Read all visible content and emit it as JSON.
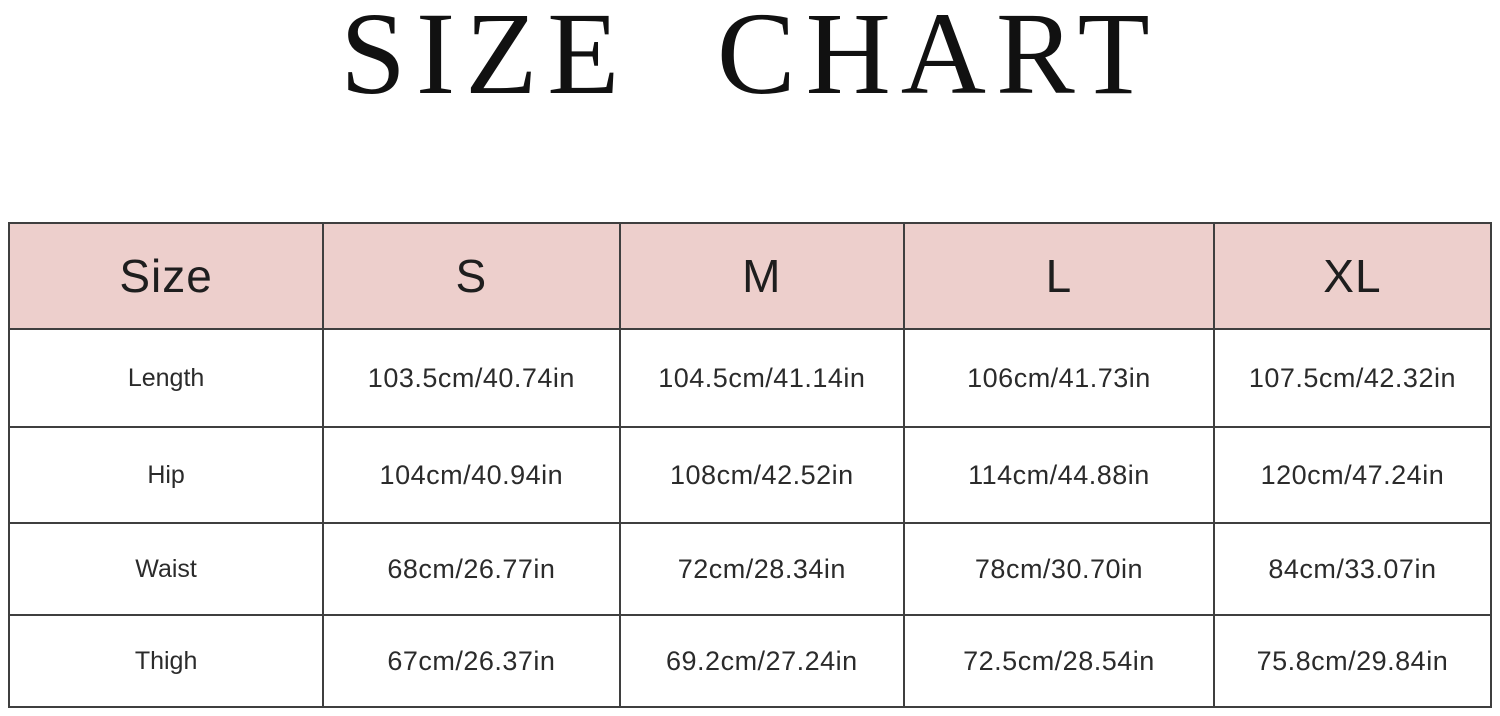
{
  "title": "SIZE CHART",
  "colors": {
    "header_bg": "#edcfcc",
    "border": "#3f3f3f",
    "text": "#2b2b2b",
    "background": "#ffffff"
  },
  "table": {
    "columns": [
      "Size",
      "S",
      "M",
      "L",
      "XL"
    ],
    "rows": [
      {
        "label": "Length",
        "values": [
          "103.5cm/40.74in",
          "104.5cm/41.14in",
          "106cm/41.73in",
          "107.5cm/42.32in"
        ]
      },
      {
        "label": "Hip",
        "values": [
          "104cm/40.94in",
          "108cm/42.52in",
          "114cm/44.88in",
          "120cm/47.24in"
        ]
      },
      {
        "label": "Waist",
        "values": [
          "68cm/26.77in",
          "72cm/28.34in",
          "78cm/30.70in",
          "84cm/33.07in"
        ]
      },
      {
        "label": "Thigh",
        "values": [
          "67cm/26.37in",
          "69.2cm/27.24in",
          "72.5cm/28.54in",
          "75.8cm/29.84in"
        ]
      }
    ]
  },
  "chart_data": {
    "type": "table",
    "title": "SIZE CHART",
    "columns": [
      "Size",
      "S",
      "M",
      "L",
      "XL"
    ],
    "rows": [
      [
        "Length",
        "103.5cm/40.74in",
        "104.5cm/41.14in",
        "106cm/41.73in",
        "107.5cm/42.32in"
      ],
      [
        "Hip",
        "104cm/40.94in",
        "108cm/42.52in",
        "114cm/44.88in",
        "120cm/47.24in"
      ],
      [
        "Waist",
        "68cm/26.77in",
        "72cm/28.34in",
        "78cm/30.70in",
        "84cm/33.07in"
      ],
      [
        "Thigh",
        "67cm/26.37in",
        "69.2cm/27.24in",
        "72.5cm/28.54in",
        "75.8cm/29.84in"
      ]
    ],
    "units": [
      "cm",
      "in"
    ],
    "layout": {
      "header_fill": "#edcfcc",
      "grid": true
    }
  }
}
